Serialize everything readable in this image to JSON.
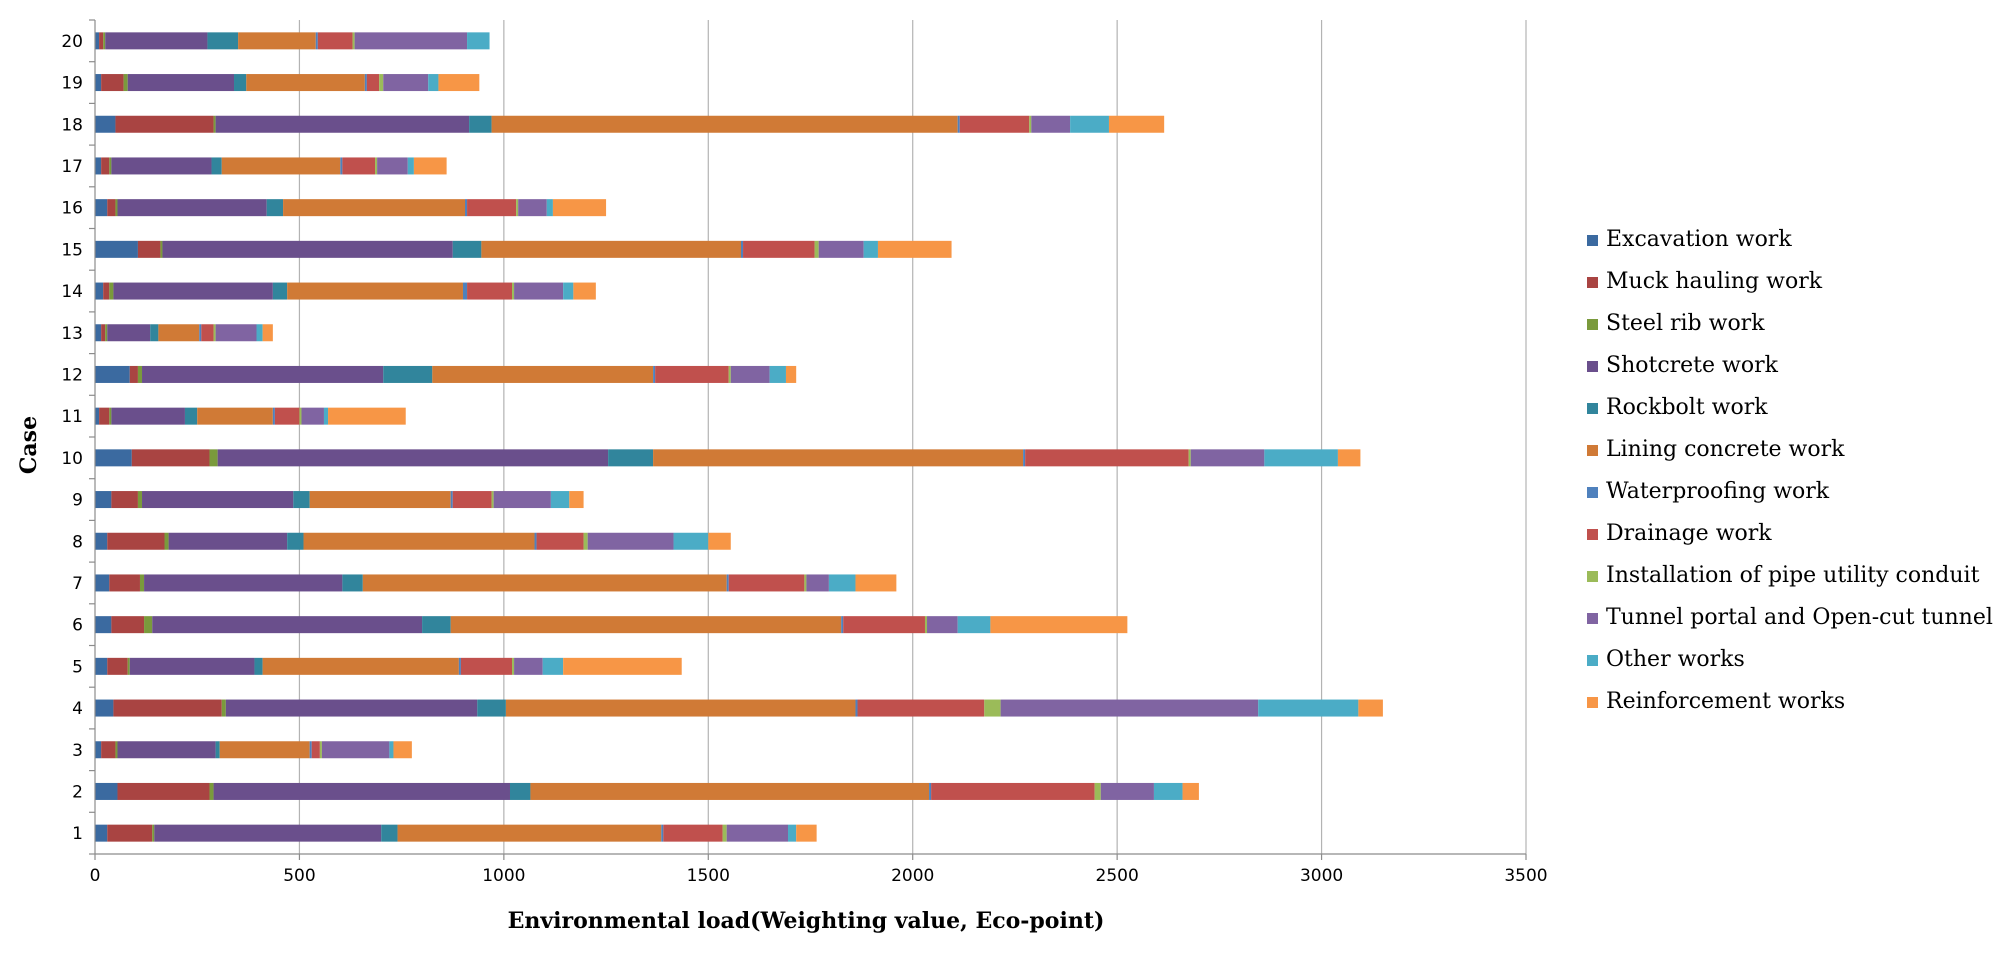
{
  "chart_data": {
    "type": "bar",
    "orientation": "horizontal",
    "stacked": true,
    "xlabel": "Environmental load(Weighting value, Eco-point)",
    "ylabel": "Case",
    "xlim": [
      0,
      3500
    ],
    "x_ticks": [
      0,
      500,
      1000,
      1500,
      2000,
      2500,
      3000,
      3500
    ],
    "grid": "vertical",
    "legend_position": "right",
    "categories": [
      "1",
      "2",
      "3",
      "4",
      "5",
      "6",
      "7",
      "8",
      "9",
      "10",
      "11",
      "12",
      "13",
      "14",
      "15",
      "16",
      "17",
      "18",
      "19",
      "20"
    ],
    "series": [
      {
        "name": "Excavation work",
        "color": "#3b6aa0",
        "values": [
          30,
          55,
          15,
          45,
          30,
          40,
          35,
          30,
          40,
          90,
          10,
          85,
          15,
          20,
          105,
          30,
          15,
          50,
          15,
          10
        ]
      },
      {
        "name": "Muck hauling work",
        "color": "#a94442",
        "values": [
          110,
          225,
          35,
          265,
          50,
          80,
          75,
          140,
          65,
          190,
          25,
          20,
          10,
          15,
          55,
          20,
          20,
          240,
          55,
          10
        ]
      },
      {
        "name": "Steel rib work",
        "color": "#7a9a3c",
        "values": [
          5,
          10,
          5,
          10,
          5,
          20,
          10,
          10,
          10,
          20,
          5,
          10,
          5,
          10,
          5,
          5,
          5,
          5,
          10,
          5
        ]
      },
      {
        "name": "Shotcrete work",
        "color": "#6a4f8c",
        "values": [
          555,
          725,
          240,
          615,
          305,
          660,
          485,
          290,
          370,
          955,
          180,
          590,
          105,
          390,
          710,
          365,
          245,
          620,
          260,
          250
        ]
      },
      {
        "name": "Rockbolt work",
        "color": "#31859c",
        "values": [
          40,
          50,
          10,
          70,
          20,
          70,
          50,
          40,
          40,
          110,
          30,
          120,
          20,
          35,
          70,
          40,
          25,
          55,
          30,
          75
        ]
      },
      {
        "name": "Lining concrete work",
        "color": "#d07a36",
        "values": [
          645,
          975,
          220,
          855,
          480,
          955,
          890,
          565,
          345,
          905,
          185,
          540,
          100,
          430,
          635,
          445,
          290,
          1140,
          290,
          190
        ]
      },
      {
        "name": "Waterproofing work",
        "color": "#4f81bd",
        "values": [
          5,
          5,
          5,
          5,
          5,
          5,
          5,
          5,
          5,
          5,
          5,
          5,
          5,
          10,
          5,
          5,
          5,
          5,
          5,
          5
        ]
      },
      {
        "name": "Drainage work",
        "color": "#c0504d",
        "values": [
          145,
          400,
          20,
          310,
          125,
          200,
          185,
          115,
          95,
          400,
          60,
          180,
          30,
          110,
          175,
          120,
          80,
          170,
          30,
          85
        ]
      },
      {
        "name": "Installation of pipe utility conduit",
        "color": "#9bbb59",
        "values": [
          10,
          15,
          5,
          40,
          5,
          5,
          5,
          10,
          5,
          5,
          5,
          5,
          5,
          5,
          10,
          5,
          5,
          5,
          10,
          5
        ]
      },
      {
        "name": "Tunnel portal and Open-cut tunnel",
        "color": "#8064a2",
        "values": [
          150,
          130,
          165,
          630,
          70,
          75,
          55,
          210,
          140,
          180,
          55,
          95,
          100,
          120,
          110,
          70,
          75,
          95,
          110,
          275
        ]
      },
      {
        "name": "Other works",
        "color": "#4bacc6",
        "values": [
          20,
          70,
          10,
          245,
          50,
          80,
          65,
          85,
          45,
          180,
          10,
          40,
          15,
          25,
          35,
          15,
          15,
          95,
          25,
          55
        ]
      },
      {
        "name": "Reinforcement works",
        "color": "#f79646",
        "values": [
          50,
          40,
          45,
          60,
          290,
          335,
          100,
          55,
          35,
          55,
          190,
          25,
          25,
          55,
          180,
          130,
          80,
          135,
          100,
          0
        ]
      }
    ]
  }
}
